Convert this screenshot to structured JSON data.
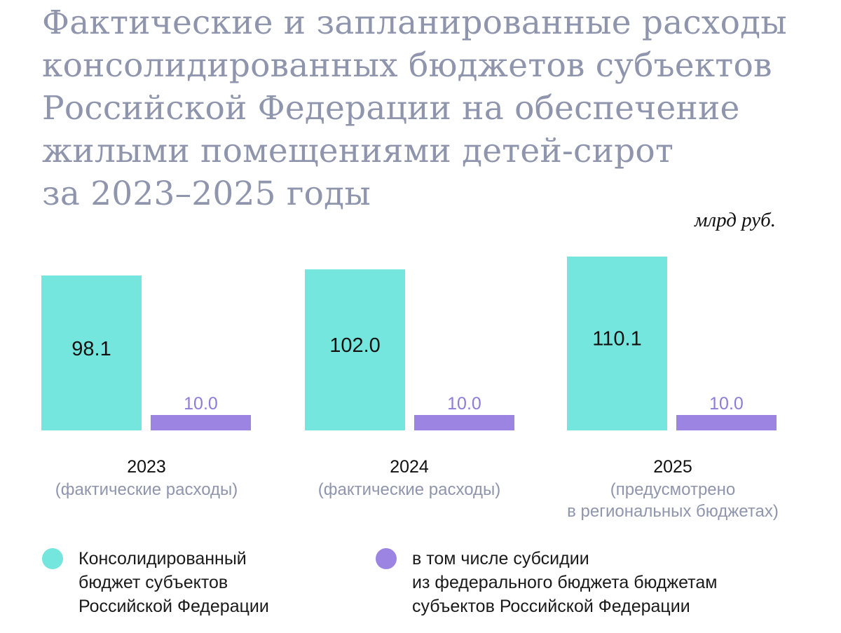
{
  "title_lines": [
    "Фактические и запланированные расходы",
    "консолидированных бюджетов субъектов",
    "Российской Федерации на обеспечение",
    "жилыми помещениями детей-сирот",
    "за 2023–2025 годы"
  ],
  "unit": "млрд руб.",
  "colors": {
    "consolidated": "#74e6dd",
    "subsidy": "#9c85e2",
    "subsidy_label": "#8f7bd8",
    "title": "#8f95ac",
    "sublabel": "#8f95ac"
  },
  "chart_data": {
    "type": "bar",
    "categories": [
      "2023",
      "2024",
      "2025"
    ],
    "category_notes": [
      [
        "(фактические расходы)"
      ],
      [
        "(фактические расходы)"
      ],
      [
        "(предусмотрено",
        "в региональных бюджетах)"
      ]
    ],
    "series": [
      {
        "name": "Консолидированный бюджет субъектов Российской Федерации",
        "values": [
          98.1,
          102.0,
          110.1
        ],
        "labels": [
          "98.1",
          "102.0",
          "110.1"
        ]
      },
      {
        "name": "в том числе субсидии из федерального бюджета бюджетам субъектов Российской Федерации",
        "values": [
          10.0,
          10.0,
          10.0
        ],
        "labels": [
          "10.0",
          "10.0",
          "10.0"
        ]
      }
    ],
    "unit": "млрд руб.",
    "grid": false
  },
  "legend": [
    {
      "lines": [
        "Консолидированный",
        "бюджет субъектов",
        "Российской Федерации"
      ]
    },
    {
      "lines": [
        "в том числе субсидии",
        "из федерального бюджета бюджетам",
        "субъектов Российской Федерации"
      ]
    }
  ]
}
